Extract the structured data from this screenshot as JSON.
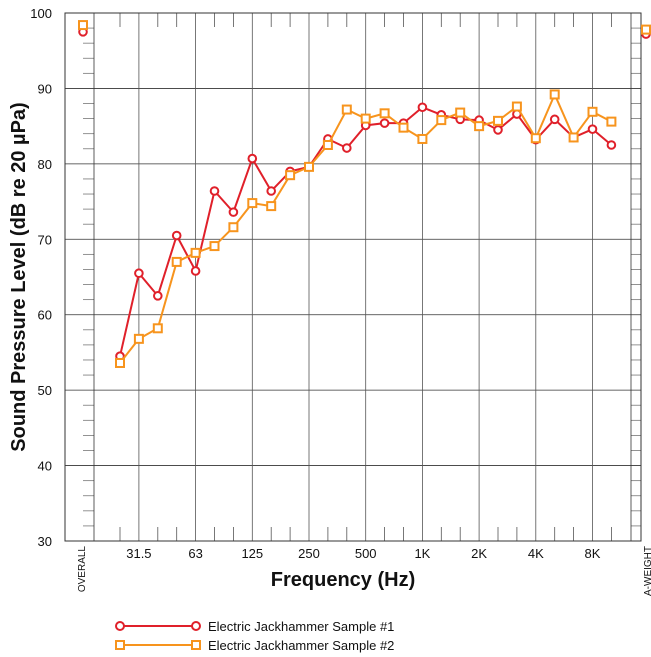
{
  "chart_data": {
    "type": "line",
    "xlabel": "Frequency (Hz)",
    "ylabel": "Sound Pressure Level (dB re 20 µPa)",
    "ylim": [
      30,
      100
    ],
    "y_ticks": [
      "30",
      "40",
      "50",
      "60",
      "70",
      "80",
      "90",
      "100"
    ],
    "x_tick_labels": [
      "31.5",
      "63",
      "125",
      "250",
      "500",
      "1K",
      "2K",
      "4K",
      "8K"
    ],
    "x_bands": [
      "25",
      "31.5",
      "40",
      "50",
      "63",
      "80",
      "100",
      "125",
      "160",
      "200",
      "250",
      "315",
      "400",
      "500",
      "630",
      "800",
      "1K",
      "1.25K",
      "1.6K",
      "2K",
      "2.5K",
      "3.15K",
      "4K",
      "5K",
      "6.3K",
      "8K",
      "10K"
    ],
    "overall_label": "OVERALL",
    "aweight_label": "A-WEIGHT",
    "grid": true,
    "legend_position": "bottom-left",
    "series": [
      {
        "name": "Electric Jackhammer Sample #1",
        "color": "#e0202a",
        "marker": "circle",
        "overall": 97.5,
        "aweight": 97.2,
        "values": [
          54.5,
          65.5,
          62.5,
          70.5,
          65.8,
          76.4,
          73.6,
          80.7,
          76.4,
          79.0,
          79.6,
          83.3,
          82.1,
          85.1,
          85.4,
          85.4,
          87.5,
          86.5,
          85.9,
          85.8,
          84.5,
          86.6,
          83.2,
          85.9,
          83.5,
          84.6,
          82.5
        ]
      },
      {
        "name": "Electric Jackhammer Sample #2",
        "color": "#f7941d",
        "marker": "square",
        "overall": 98.4,
        "aweight": 97.8,
        "values": [
          53.6,
          56.8,
          58.2,
          67.0,
          68.2,
          69.1,
          71.6,
          74.8,
          74.4,
          78.5,
          79.6,
          82.5,
          87.2,
          86.0,
          86.7,
          84.8,
          83.3,
          85.8,
          86.8,
          85.0,
          85.7,
          87.6,
          83.4,
          89.2,
          83.5,
          86.9,
          85.6
        ]
      }
    ]
  }
}
